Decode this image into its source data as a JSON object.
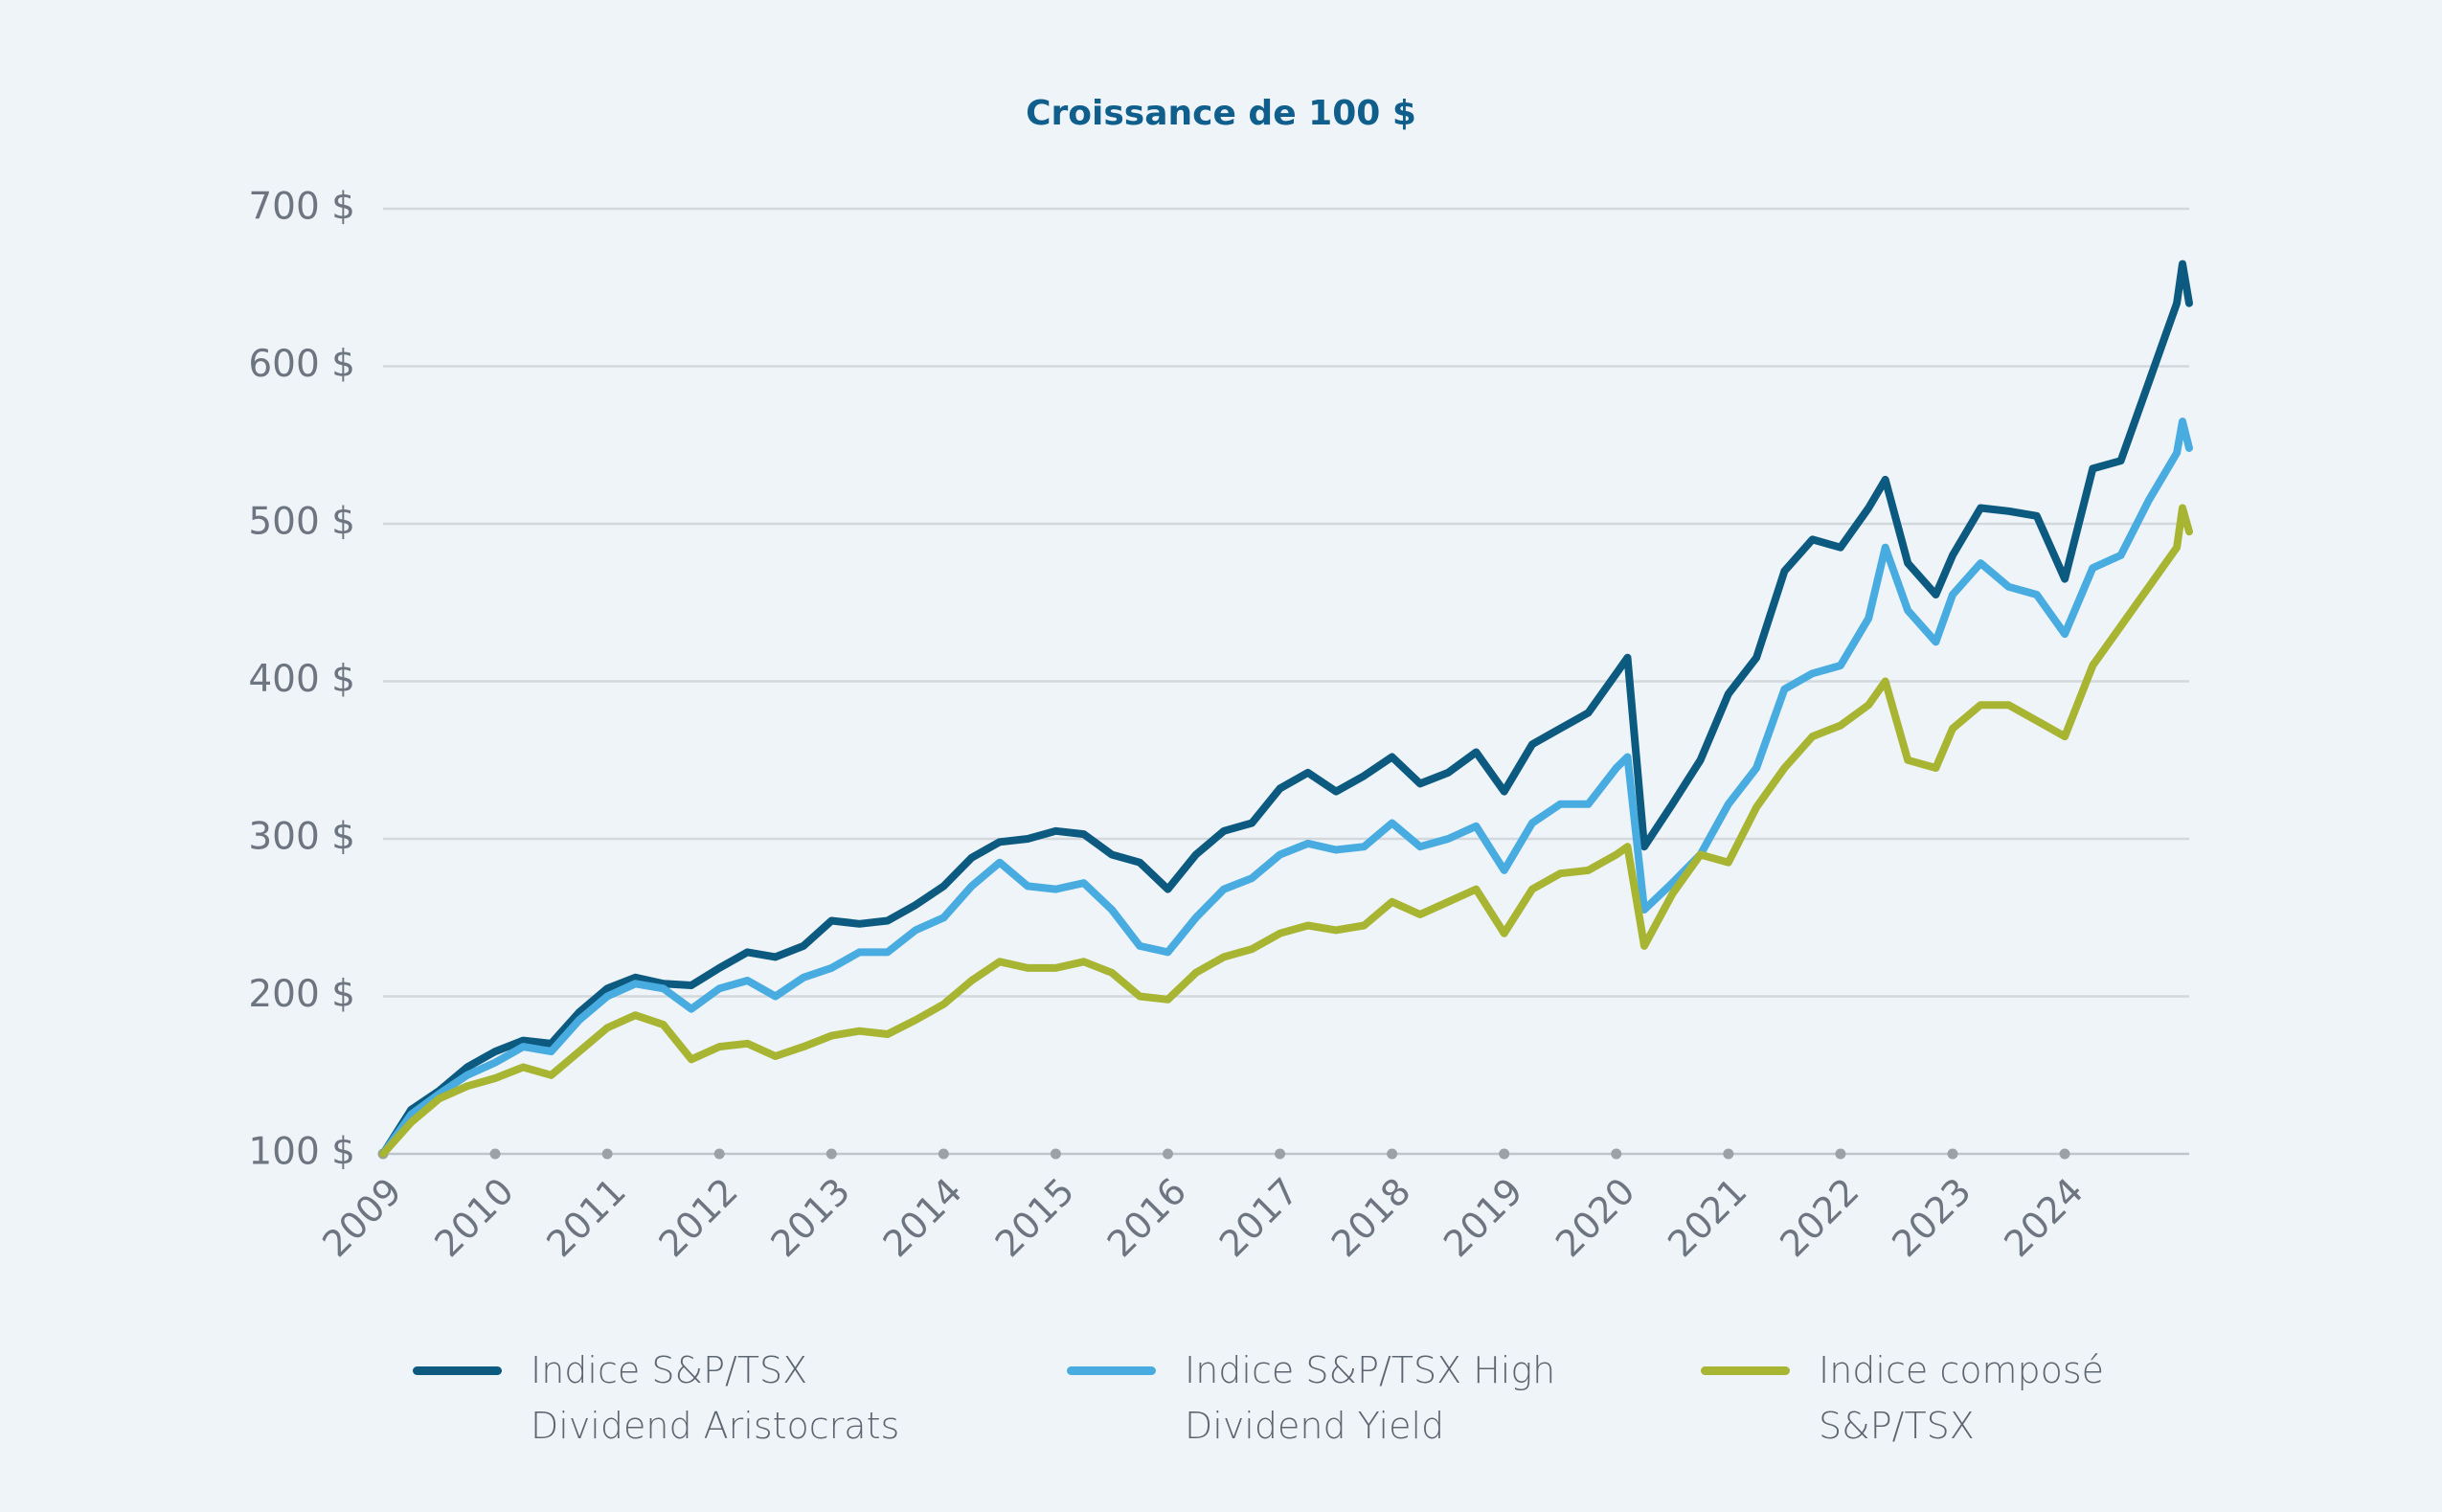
{
  "chart_data": {
    "type": "line",
    "title": "Croissance de 100 $",
    "x": [
      2009,
      2009.25,
      2009.5,
      2009.75,
      2010,
      2010.25,
      2010.5,
      2010.75,
      2011,
      2011.25,
      2011.5,
      2011.75,
      2012,
      2012.25,
      2012.5,
      2012.75,
      2013,
      2013.25,
      2013.5,
      2013.75,
      2014,
      2014.25,
      2014.5,
      2014.75,
      2015,
      2015.25,
      2015.5,
      2015.75,
      2016,
      2016.25,
      2016.5,
      2016.75,
      2017,
      2017.25,
      2017.5,
      2017.75,
      2018,
      2018.25,
      2018.5,
      2018.75,
      2019,
      2019.25,
      2019.5,
      2019.75,
      2020,
      2020.1,
      2020.25,
      2020.5,
      2020.75,
      2021,
      2021.25,
      2021.5,
      2021.75,
      2022,
      2022.25,
      2022.4,
      2022.6,
      2022.85,
      2023,
      2023.25,
      2023.5,
      2023.75,
      2024,
      2024.25,
      2024.5,
      2024.75,
      2025,
      2025.05,
      2025.11
    ],
    "series": [
      {
        "name": "Indice S&P/TSX Dividend Aristocrats",
        "color": "#0c5a80",
        "values": [
          100,
          128,
          140,
          155,
          165,
          172,
          170,
          190,
          205,
          212,
          208,
          207,
          218,
          228,
          225,
          232,
          248,
          246,
          248,
          258,
          270,
          288,
          298,
          300,
          305,
          303,
          290,
          285,
          268,
          290,
          305,
          310,
          332,
          342,
          330,
          340,
          352,
          335,
          342,
          355,
          330,
          360,
          370,
          380,
          405,
          415,
          295,
          322,
          350,
          392,
          415,
          470,
          490,
          485,
          510,
          528,
          475,
          455,
          480,
          510,
          508,
          505,
          465,
          535,
          540,
          590,
          640,
          665,
          640
        ]
      },
      {
        "name": "Indice S&P/TSX High Dividend Yield",
        "color": "#49ace0",
        "values": [
          100,
          125,
          138,
          150,
          158,
          168,
          165,
          185,
          200,
          208,
          205,
          192,
          205,
          210,
          200,
          212,
          218,
          228,
          228,
          242,
          250,
          270,
          285,
          270,
          268,
          272,
          255,
          232,
          228,
          250,
          268,
          275,
          290,
          297,
          293,
          295,
          310,
          295,
          300,
          308,
          280,
          310,
          322,
          322,
          345,
          352,
          255,
          272,
          290,
          322,
          345,
          395,
          405,
          410,
          440,
          485,
          445,
          425,
          455,
          475,
          460,
          455,
          430,
          472,
          480,
          515,
          545,
          565,
          548
        ]
      },
      {
        "name": "Indice composé S&P/TSX",
        "color": "#a8b532",
        "values": [
          100,
          120,
          135,
          143,
          148,
          155,
          150,
          165,
          180,
          188,
          182,
          160,
          168,
          170,
          162,
          168,
          175,
          178,
          176,
          185,
          195,
          210,
          222,
          218,
          218,
          222,
          215,
          200,
          198,
          215,
          225,
          230,
          240,
          245,
          242,
          245,
          260,
          252,
          260,
          268,
          240,
          268,
          278,
          280,
          290,
          295,
          232,
          265,
          290,
          285,
          320,
          345,
          365,
          372,
          385,
          400,
          350,
          345,
          370,
          385,
          385,
          375,
          365,
          410,
          435,
          460,
          485,
          510,
          495
        ]
      }
    ],
    "xlim": [
      2009,
      2025.11
    ],
    "xticks": [
      2009,
      2010,
      2011,
      2012,
      2013,
      2014,
      2015,
      2016,
      2017,
      2018,
      2019,
      2020,
      2021,
      2022,
      2023,
      2024
    ],
    "ylim": [
      100,
      700
    ],
    "yticks": [
      {
        "value": 100,
        "label": "100 $"
      },
      {
        "value": 200,
        "label": "200 $"
      },
      {
        "value": 300,
        "label": "300 $"
      },
      {
        "value": 400,
        "label": "400 $"
      },
      {
        "value": 500,
        "label": "500 $"
      },
      {
        "value": 600,
        "label": "600 $"
      },
      {
        "value": 700,
        "label": "700 $"
      }
    ],
    "grid": true,
    "legend": "bottom"
  }
}
